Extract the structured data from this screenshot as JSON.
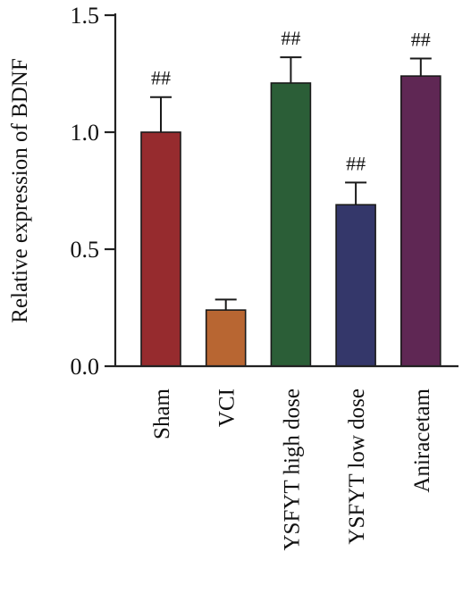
{
  "chart_data": {
    "type": "bar",
    "title": "",
    "xlabel": "",
    "ylabel": "Relative expression of BDNF",
    "ylim": [
      0,
      1.5
    ],
    "yticks": [
      0.0,
      0.5,
      1.0,
      1.5
    ],
    "ytick_labels": [
      "0.0",
      "0.5",
      "1.0",
      "1.5"
    ],
    "grid": false,
    "legend": "none",
    "categories": [
      "Sham",
      "VCI",
      "YSFYT high dose",
      "YSFYT low dose",
      "Aniracetam"
    ],
    "values": [
      1.0,
      0.24,
      1.21,
      0.69,
      1.24
    ],
    "errors": [
      0.15,
      0.045,
      0.11,
      0.095,
      0.075
    ],
    "annotations": [
      "##",
      "",
      "##",
      "##",
      "##"
    ],
    "colors": [
      "#962b2e",
      "#b86632",
      "#2b5e37",
      "#34376a",
      "#5f2754"
    ]
  }
}
